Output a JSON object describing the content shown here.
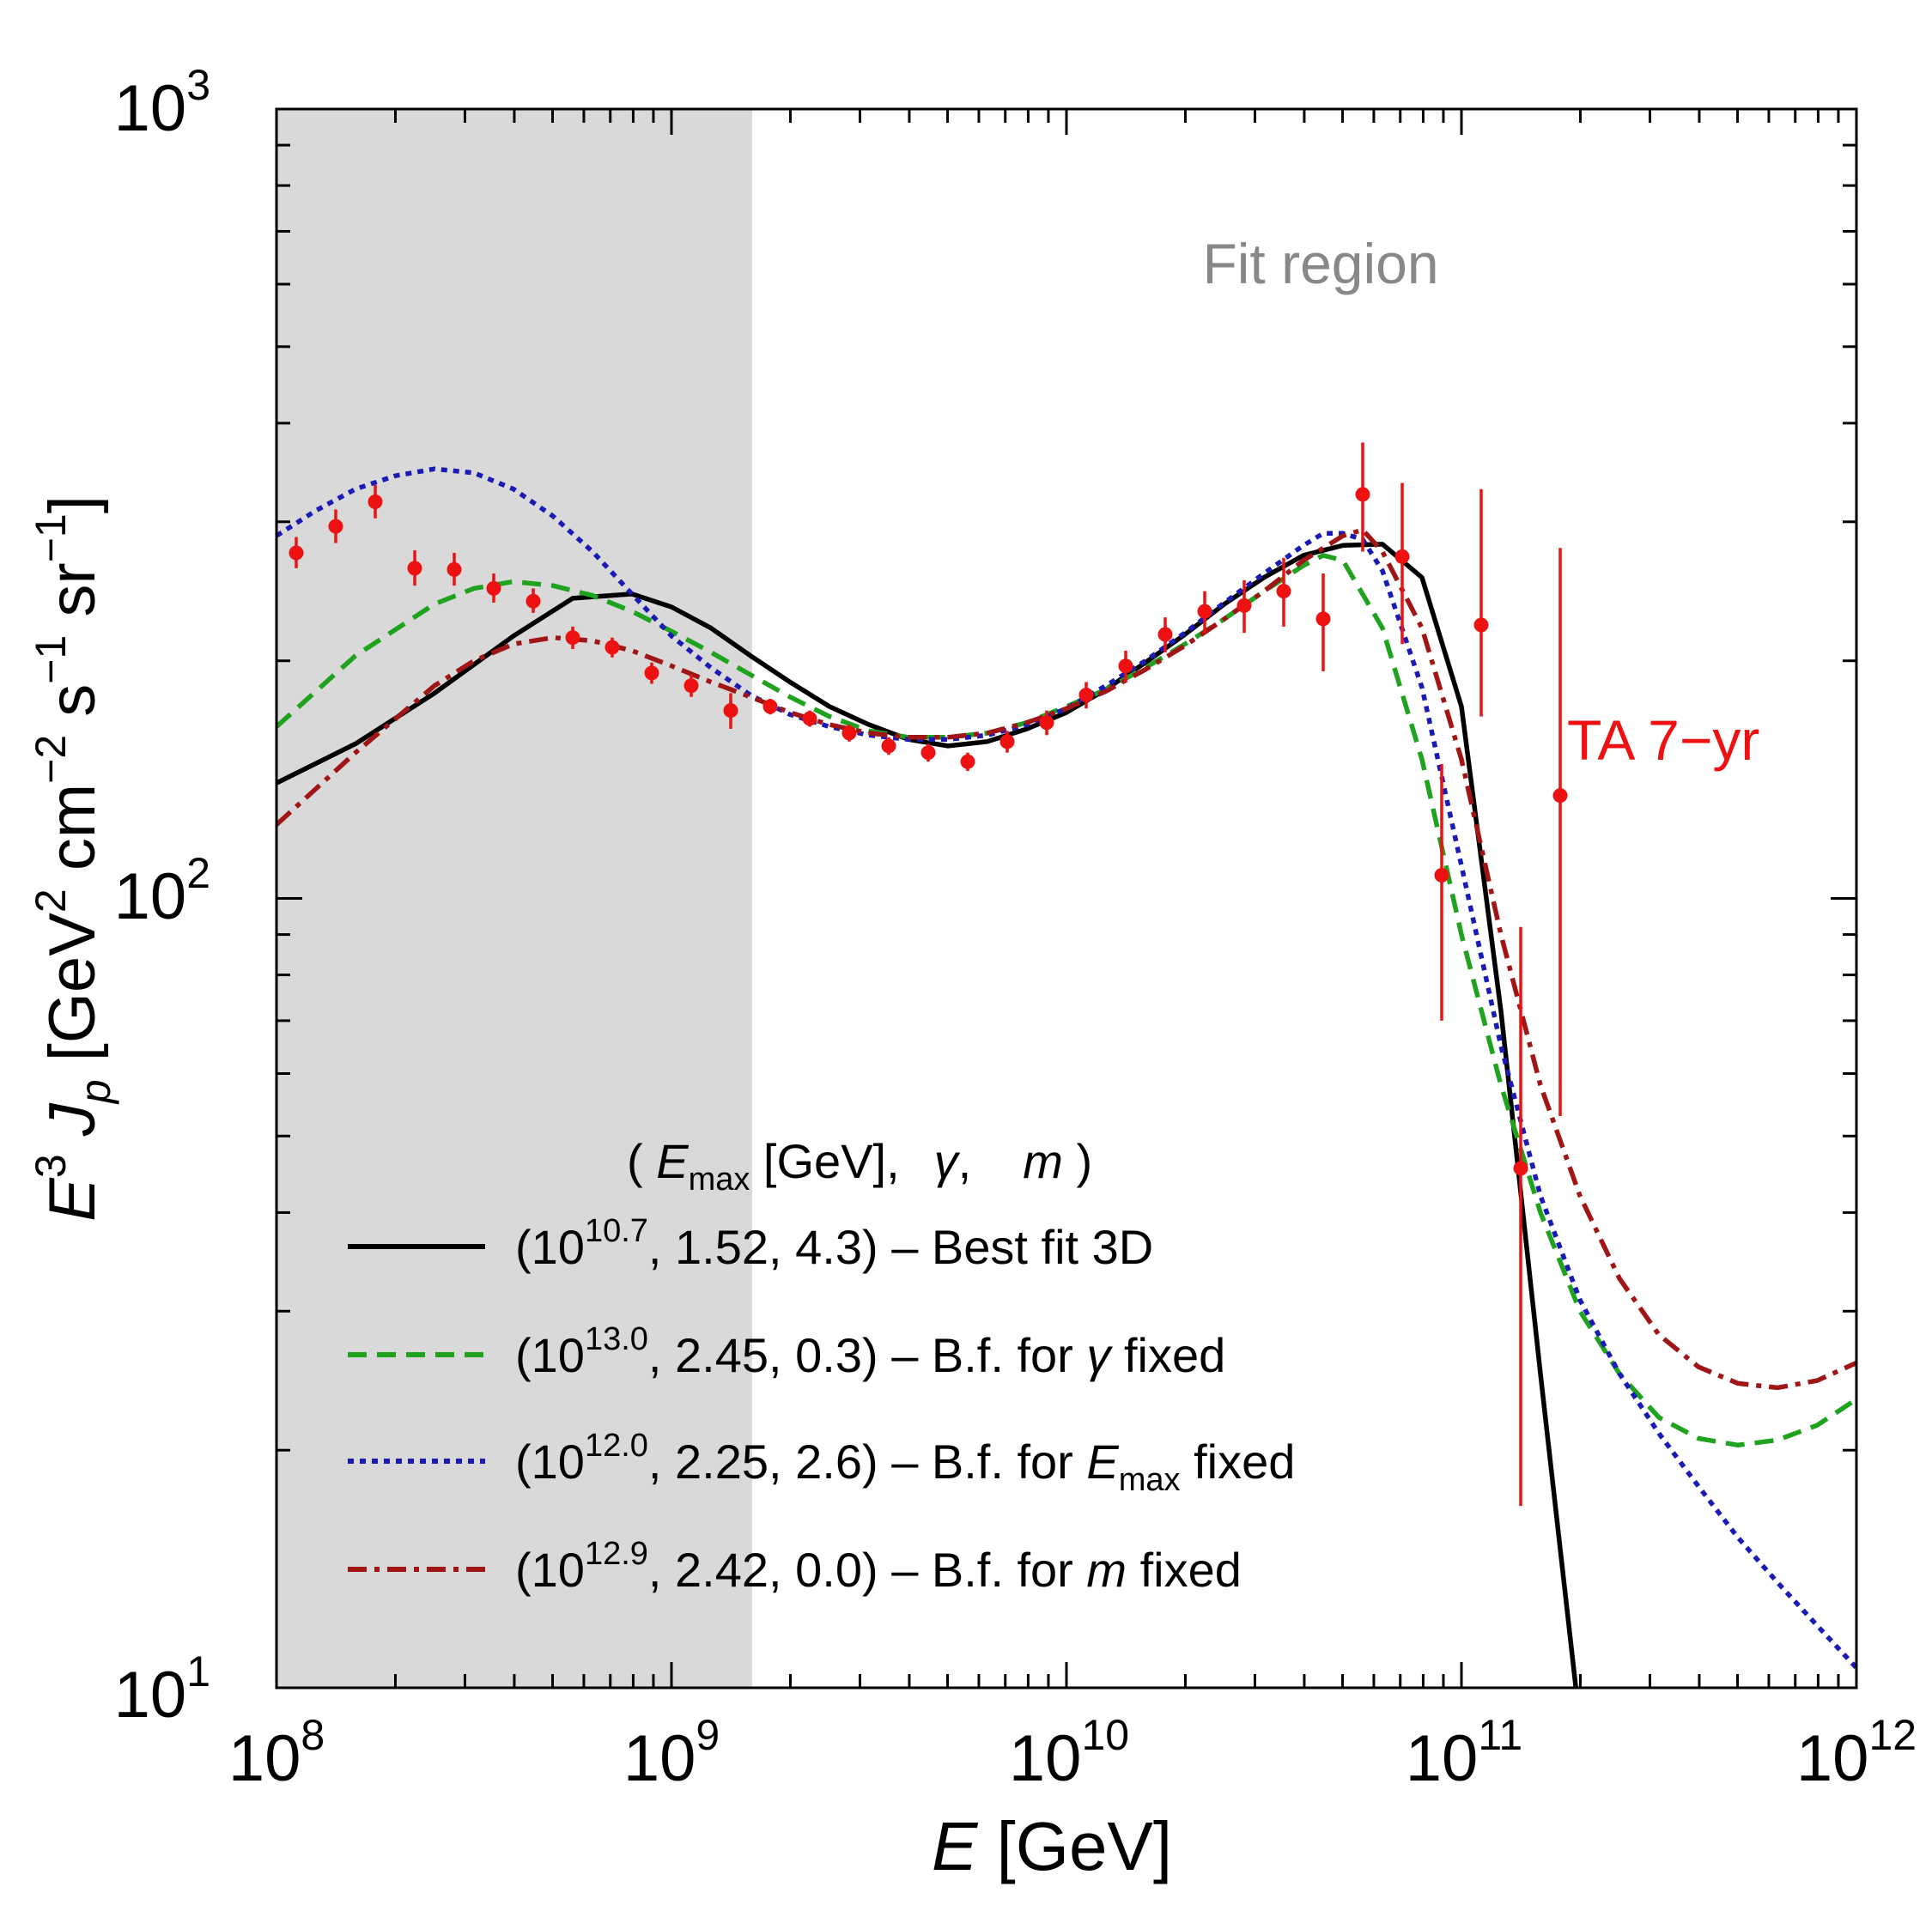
{
  "chart_data": {
    "type": "line",
    "xscale": "log",
    "yscale": "log",
    "xlim": [
      100000000.0,
      1000000000000.0
    ],
    "ylim": [
      10,
      1000
    ],
    "xlabel": {
      "italic": "E",
      "rest": " [GeV]"
    },
    "ylabel": {
      "parts": [
        "E",
        "3",
        " J",
        "p",
        "  [GeV",
        "2",
        " cm",
        "−2",
        " s",
        "−1",
        " sr",
        "−1",
        "]"
      ]
    },
    "x_ticks": [
      {
        "base": "10",
        "exp": "8"
      },
      {
        "base": "10",
        "exp": "9"
      },
      {
        "base": "10",
        "exp": "10"
      },
      {
        "base": "10",
        "exp": "11"
      },
      {
        "base": "10",
        "exp": "12"
      }
    ],
    "y_ticks": [
      {
        "base": "10",
        "exp": "1"
      },
      {
        "base": "10",
        "exp": "2"
      },
      {
        "base": "10",
        "exp": "3"
      }
    ],
    "shaded_region": {
      "x_range": [
        100000000.0,
        1600000000.0
      ],
      "color": "#d9d9d9"
    },
    "annotations": {
      "fit_region": "Fit region",
      "ta_label": "TA 7−yr"
    },
    "legend": {
      "header": {
        "open": "( ",
        "emax_e": "E",
        "emax_sub": "max",
        "emax_unit": " [GeV],",
        "gamma": "γ",
        "comma": ",",
        "m": "m",
        "close": " )"
      },
      "entries": [
        {
          "paren": "(10",
          "exp": "10.7",
          "rest": ", 1.52, 4.3)  –  Best fit 3D",
          "italic": "",
          "sub": "",
          "tail": ""
        },
        {
          "paren": "(10",
          "exp": "13.0",
          "rest": ", 2.45, 0.3)  –  B.f. for ",
          "italic": "γ",
          "sub": "",
          "tail": " fixed"
        },
        {
          "paren": "(10",
          "exp": "12.0",
          "rest": ", 2.25, 2.6)  –  B.f. for ",
          "italic": "E",
          "sub": "max",
          "tail": " fixed"
        },
        {
          "paren": "(10",
          "exp": "12.9",
          "rest": ", 2.42, 0.0)  –  B.f. for ",
          "italic": "m",
          "sub": "",
          "tail": " fixed"
        }
      ]
    },
    "series": [
      {
        "name": "Best fit 3D",
        "color": "#000000",
        "dash": "solid",
        "logx": [
          8.0,
          8.2,
          8.4,
          8.6,
          8.75,
          8.9,
          9.0,
          9.1,
          9.2,
          9.3,
          9.4,
          9.5,
          9.6,
          9.7,
          9.8,
          9.9,
          10.0,
          10.1,
          10.2,
          10.3,
          10.4,
          10.5,
          10.6,
          10.7,
          10.8,
          10.9,
          11.0,
          11.1,
          11.2,
          11.3
        ],
        "y": [
          140,
          157,
          182,
          215,
          240,
          243,
          234,
          220,
          203,
          188,
          175,
          166,
          159,
          156,
          158,
          164,
          172,
          184,
          199,
          216,
          236,
          255,
          272,
          280,
          281,
          255,
          175,
          72,
          25,
          9
        ]
      },
      {
        "name": "B.f. for γ fixed",
        "color": "#1fa31f",
        "dash": "dashed",
        "logx": [
          8.0,
          8.2,
          8.4,
          8.5,
          8.6,
          8.7,
          8.8,
          8.9,
          9.0,
          9.1,
          9.2,
          9.3,
          9.4,
          9.5,
          9.6,
          9.7,
          9.8,
          9.9,
          10.0,
          10.1,
          10.2,
          10.3,
          10.4,
          10.5,
          10.6,
          10.65,
          10.7,
          10.8,
          10.9,
          11.0,
          11.1,
          11.2,
          11.3,
          11.4,
          11.5,
          11.6,
          11.7,
          11.8,
          11.9,
          12.0
        ],
        "y": [
          165,
          203,
          236,
          247,
          252,
          249,
          242,
          231,
          218,
          205,
          192,
          180,
          170,
          163,
          160,
          160,
          162,
          167,
          175,
          184,
          196,
          210,
          226,
          245,
          264,
          272,
          268,
          220,
          150,
          90,
          58,
          40,
          30,
          25,
          22,
          20.7,
          20.3,
          20.6,
          21.5,
          23.2
        ]
      },
      {
        "name": "B.f. for Emax fixed",
        "color": "#1a1ab4",
        "dash": "dotted",
        "logx": [
          8.0,
          8.1,
          8.2,
          8.3,
          8.4,
          8.5,
          8.6,
          8.7,
          8.8,
          8.9,
          9.0,
          9.1,
          9.2,
          9.3,
          9.4,
          9.5,
          9.6,
          9.7,
          9.8,
          9.9,
          10.0,
          10.1,
          10.2,
          10.3,
          10.4,
          10.5,
          10.6,
          10.65,
          10.7,
          10.75,
          10.8,
          10.9,
          11.0,
          11.1,
          11.2,
          11.3,
          11.4,
          11.5,
          11.6,
          11.7,
          11.8,
          11.9,
          12.0
        ],
        "y": [
          288,
          310,
          330,
          343,
          350,
          346,
          330,
          305,
          275,
          243,
          215,
          196,
          181,
          171,
          165,
          161,
          159,
          159,
          161,
          166,
          174,
          186,
          200,
          217,
          237,
          258,
          280,
          290,
          290,
          285,
          260,
          185,
          110,
          65,
          42,
          31,
          25,
          21,
          18,
          15.5,
          13.6,
          12,
          10.6
        ]
      },
      {
        "name": "B.f. for m fixed",
        "color": "#a01515",
        "dash": "dashdot",
        "logx": [
          8.0,
          8.2,
          8.4,
          8.5,
          8.6,
          8.7,
          8.8,
          8.9,
          9.0,
          9.1,
          9.2,
          9.3,
          9.4,
          9.5,
          9.6,
          9.7,
          9.8,
          9.9,
          10.0,
          10.1,
          10.2,
          10.3,
          10.4,
          10.5,
          10.6,
          10.7,
          10.75,
          10.8,
          10.9,
          11.0,
          11.1,
          11.2,
          11.3,
          11.4,
          11.5,
          11.6,
          11.7,
          11.8,
          11.9,
          12.0
        ],
        "y": [
          124,
          153,
          186,
          200,
          210,
          214,
          212,
          206,
          197,
          188,
          180,
          172,
          166,
          162,
          160,
          160,
          162,
          167,
          174,
          183,
          195,
          209,
          226,
          245,
          268,
          288,
          293,
          275,
          220,
          150,
          90,
          58,
          42,
          33,
          28,
          25.5,
          24.3,
          24,
          24.5,
          25.8
        ]
      }
    ],
    "data_points": {
      "name": "TA 7−yr",
      "color": "#ee1111",
      "points": [
        {
          "logx": 8.05,
          "y": 274,
          "lo": 262,
          "hi": 287
        },
        {
          "logx": 8.15,
          "y": 296,
          "lo": 282,
          "hi": 311
        },
        {
          "logx": 8.25,
          "y": 318,
          "lo": 303,
          "hi": 334
        },
        {
          "logx": 8.35,
          "y": 262,
          "lo": 249,
          "hi": 276
        },
        {
          "logx": 8.45,
          "y": 261,
          "lo": 249,
          "hi": 274
        },
        {
          "logx": 8.55,
          "y": 247,
          "lo": 237,
          "hi": 258
        },
        {
          "logx": 8.65,
          "y": 238,
          "lo": 230,
          "hi": 247
        },
        {
          "logx": 8.75,
          "y": 214,
          "lo": 207,
          "hi": 221
        },
        {
          "logx": 8.85,
          "y": 208,
          "lo": 202,
          "hi": 214
        },
        {
          "logx": 8.95,
          "y": 193,
          "lo": 187,
          "hi": 199
        },
        {
          "logx": 9.05,
          "y": 186,
          "lo": 180,
          "hi": 192
        },
        {
          "logx": 9.15,
          "y": 173,
          "lo": 164,
          "hi": 182
        },
        {
          "logx": 9.25,
          "y": 175,
          "lo": 171,
          "hi": 179
        },
        {
          "logx": 9.35,
          "y": 169,
          "lo": 165,
          "hi": 173
        },
        {
          "logx": 9.45,
          "y": 162,
          "lo": 158,
          "hi": 166
        },
        {
          "logx": 9.55,
          "y": 156,
          "lo": 152,
          "hi": 160
        },
        {
          "logx": 9.65,
          "y": 153,
          "lo": 149,
          "hi": 157
        },
        {
          "logx": 9.75,
          "y": 149,
          "lo": 145,
          "hi": 153
        },
        {
          "logx": 9.85,
          "y": 158,
          "lo": 153,
          "hi": 163
        },
        {
          "logx": 9.95,
          "y": 167,
          "lo": 161,
          "hi": 173
        },
        {
          "logx": 10.05,
          "y": 181,
          "lo": 174,
          "hi": 188
        },
        {
          "logx": 10.15,
          "y": 197,
          "lo": 188,
          "hi": 206
        },
        {
          "logx": 10.25,
          "y": 216,
          "lo": 205,
          "hi": 227
        },
        {
          "logx": 10.35,
          "y": 231,
          "lo": 217,
          "hi": 245
        },
        {
          "logx": 10.45,
          "y": 235,
          "lo": 217,
          "hi": 253
        },
        {
          "logx": 10.55,
          "y": 245,
          "lo": 221,
          "hi": 270
        },
        {
          "logx": 10.65,
          "y": 226,
          "lo": 194,
          "hi": 258
        },
        {
          "logx": 10.75,
          "y": 325,
          "lo": 275,
          "hi": 378
        },
        {
          "logx": 10.85,
          "y": 271,
          "lo": 210,
          "hi": 336
        },
        {
          "logx": 10.95,
          "y": 107,
          "lo": 70,
          "hi": 148
        },
        {
          "logx": 11.05,
          "y": 222,
          "lo": 170,
          "hi": 330
        },
        {
          "logx": 11.15,
          "y": 45.5,
          "lo": 17,
          "hi": 92
        },
        {
          "logx": 11.25,
          "y": 135,
          "lo": 53,
          "hi": 278
        }
      ]
    }
  }
}
